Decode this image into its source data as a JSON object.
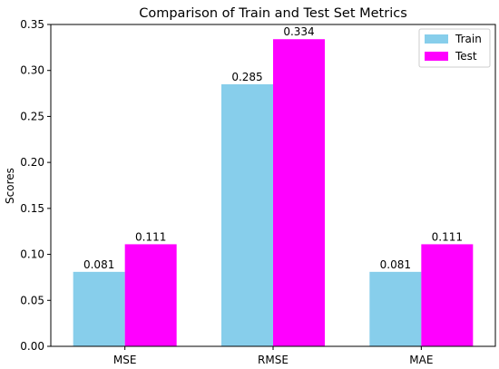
{
  "chart_data": {
    "type": "bar",
    "title": "Comparison of Train and Test Set Metrics",
    "xlabel": "",
    "ylabel": "Scores",
    "categories": [
      "MSE",
      "RMSE",
      "MAE"
    ],
    "series": [
      {
        "name": "Train",
        "values": [
          0.081,
          0.285,
          0.081
        ],
        "labels": [
          "0.081",
          "0.285",
          "0.081"
        ],
        "color": "#87ceeb"
      },
      {
        "name": "Test",
        "values": [
          0.111,
          0.334,
          0.111
        ],
        "labels": [
          "0.111",
          "0.334",
          "0.111"
        ],
        "color": "#ff00ff"
      }
    ],
    "ylim": [
      0,
      0.35
    ],
    "yticks": [
      0.0,
      0.05,
      0.1,
      0.15,
      0.2,
      0.25,
      0.3,
      0.35
    ],
    "ytick_labels": [
      "0.00",
      "0.05",
      "0.10",
      "0.15",
      "0.20",
      "0.25",
      "0.30",
      "0.35"
    ],
    "grid": false,
    "legend_position": "top-right"
  }
}
